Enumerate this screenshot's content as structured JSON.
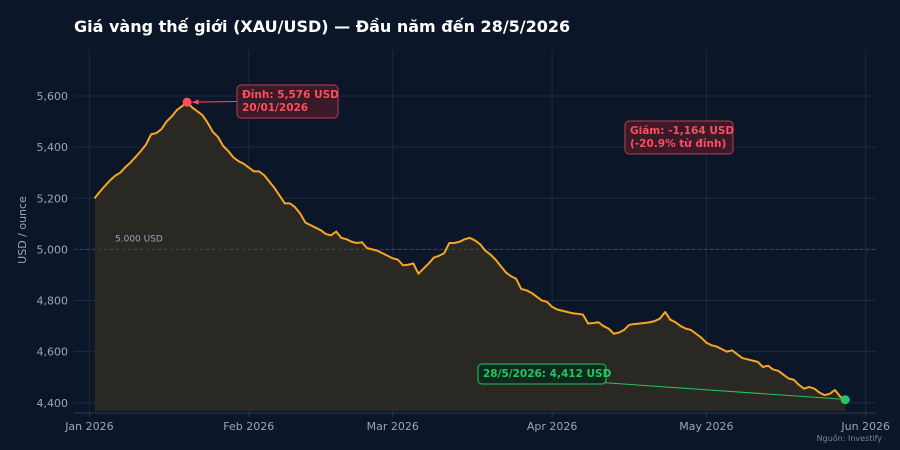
{
  "chart_data": {
    "type": "line",
    "title": "Giá vàng thế giới (XAU/USD) — Đầu năm đến 28/5/2026",
    "ylabel": "USD / ounce",
    "xlabel": "",
    "source": "Nguồn: Investify",
    "x_range": [
      "2025-12-29",
      "2026-06-03"
    ],
    "ylim": [
      4360,
      5780
    ],
    "y_ticks": [
      4400,
      4600,
      4800,
      5000,
      5200,
      5400,
      5600
    ],
    "y_tick_labels": [
      "4,400",
      "4,600",
      "4,800",
      "5,000",
      "5,200",
      "5,400",
      "5,600"
    ],
    "x_ticks": [
      {
        "date": "2026-01-01",
        "label": "Jan 2026"
      },
      {
        "date": "2026-02-01",
        "label": "Feb 2026"
      },
      {
        "date": "2026-03-01",
        "label": "Mar 2026"
      },
      {
        "date": "2026-04-01",
        "label": "Apr 2026"
      },
      {
        "date": "2026-05-01",
        "label": "May 2026"
      },
      {
        "date": "2026-06-01",
        "label": "Jun 2026"
      }
    ],
    "grid": true,
    "reference_line": {
      "y": 5000,
      "label": "5.000 USD"
    },
    "series": [
      {
        "color": "#f5a623",
        "fill": "#2a2823",
        "points": [
          [
            "2026-01-02",
            5200
          ],
          [
            "2026-01-03",
            5225
          ],
          [
            "2026-01-04",
            5248
          ],
          [
            "2026-01-05",
            5270
          ],
          [
            "2026-01-06",
            5288
          ],
          [
            "2026-01-07",
            5300
          ],
          [
            "2026-01-08",
            5322
          ],
          [
            "2026-01-09",
            5340
          ],
          [
            "2026-01-10",
            5362
          ],
          [
            "2026-01-11",
            5385
          ],
          [
            "2026-01-12",
            5410
          ],
          [
            "2026-01-13",
            5450
          ],
          [
            "2026-01-14",
            5455
          ],
          [
            "2026-01-15",
            5470
          ],
          [
            "2026-01-16",
            5500
          ],
          [
            "2026-01-17",
            5520
          ],
          [
            "2026-01-18",
            5545
          ],
          [
            "2026-01-19",
            5560
          ],
          [
            "2026-01-20",
            5576
          ],
          [
            "2026-01-21",
            5555
          ],
          [
            "2026-01-22",
            5540
          ],
          [
            "2026-01-23",
            5525
          ],
          [
            "2026-01-24",
            5495
          ],
          [
            "2026-01-25",
            5460
          ],
          [
            "2026-01-26",
            5440
          ],
          [
            "2026-01-27",
            5405
          ],
          [
            "2026-01-28",
            5385
          ],
          [
            "2026-01-29",
            5360
          ],
          [
            "2026-01-30",
            5345
          ],
          [
            "2026-01-31",
            5335
          ],
          [
            "2026-02-01",
            5320
          ],
          [
            "2026-02-02",
            5305
          ],
          [
            "2026-02-03",
            5305
          ],
          [
            "2026-02-04",
            5290
          ],
          [
            "2026-02-05",
            5265
          ],
          [
            "2026-02-06",
            5240
          ],
          [
            "2026-02-07",
            5210
          ],
          [
            "2026-02-08",
            5180
          ],
          [
            "2026-02-09",
            5180
          ],
          [
            "2026-02-10",
            5165
          ],
          [
            "2026-02-11",
            5140
          ],
          [
            "2026-02-12",
            5105
          ],
          [
            "2026-02-13",
            5095
          ],
          [
            "2026-02-14",
            5085
          ],
          [
            "2026-02-15",
            5075
          ],
          [
            "2026-02-16",
            5060
          ],
          [
            "2026-02-17",
            5055
          ],
          [
            "2026-02-18",
            5070
          ],
          [
            "2026-02-19",
            5045
          ],
          [
            "2026-02-20",
            5040
          ],
          [
            "2026-02-21",
            5030
          ],
          [
            "2026-02-22",
            5025
          ],
          [
            "2026-02-23",
            5028
          ],
          [
            "2026-02-24",
            5005
          ],
          [
            "2026-02-25",
            5000
          ],
          [
            "2026-02-26",
            4995
          ],
          [
            "2026-02-27",
            4985
          ],
          [
            "2026-02-28",
            4975
          ],
          [
            "2026-03-01",
            4965
          ],
          [
            "2026-03-02",
            4960
          ],
          [
            "2026-03-03",
            4938
          ],
          [
            "2026-03-04",
            4940
          ],
          [
            "2026-03-05",
            4945
          ],
          [
            "2026-03-06",
            4905
          ],
          [
            "2026-03-07",
            4925
          ],
          [
            "2026-03-08",
            4945
          ],
          [
            "2026-03-09",
            4968
          ],
          [
            "2026-03-10",
            4975
          ],
          [
            "2026-03-11",
            4985
          ],
          [
            "2026-03-12",
            5025
          ],
          [
            "2026-03-13",
            5025
          ],
          [
            "2026-03-14",
            5030
          ],
          [
            "2026-03-15",
            5040
          ],
          [
            "2026-03-16",
            5045
          ],
          [
            "2026-03-17",
            5035
          ],
          [
            "2026-03-18",
            5020
          ],
          [
            "2026-03-19",
            4995
          ],
          [
            "2026-03-20",
            4980
          ],
          [
            "2026-03-21",
            4960
          ],
          [
            "2026-03-22",
            4935
          ],
          [
            "2026-03-23",
            4910
          ],
          [
            "2026-03-24",
            4895
          ],
          [
            "2026-03-25",
            4885
          ],
          [
            "2026-03-26",
            4845
          ],
          [
            "2026-03-27",
            4840
          ],
          [
            "2026-03-28",
            4830
          ],
          [
            "2026-03-29",
            4815
          ],
          [
            "2026-03-30",
            4800
          ],
          [
            "2026-03-31",
            4795
          ],
          [
            "2026-04-01",
            4775
          ],
          [
            "2026-04-02",
            4765
          ],
          [
            "2026-04-03",
            4760
          ],
          [
            "2026-04-04",
            4755
          ],
          [
            "2026-04-05",
            4750
          ],
          [
            "2026-04-06",
            4748
          ],
          [
            "2026-04-07",
            4745
          ],
          [
            "2026-04-08",
            4710
          ],
          [
            "2026-04-09",
            4712
          ],
          [
            "2026-04-10",
            4715
          ],
          [
            "2026-04-11",
            4700
          ],
          [
            "2026-04-12",
            4690
          ],
          [
            "2026-04-13",
            4670
          ],
          [
            "2026-04-14",
            4675
          ],
          [
            "2026-04-15",
            4685
          ],
          [
            "2026-04-16",
            4705
          ],
          [
            "2026-04-17",
            4708
          ],
          [
            "2026-04-18",
            4710
          ],
          [
            "2026-04-19",
            4712
          ],
          [
            "2026-04-20",
            4715
          ],
          [
            "2026-04-21",
            4720
          ],
          [
            "2026-04-22",
            4730
          ],
          [
            "2026-04-23",
            4755
          ],
          [
            "2026-04-24",
            4725
          ],
          [
            "2026-04-25",
            4715
          ],
          [
            "2026-04-26",
            4700
          ],
          [
            "2026-04-27",
            4690
          ],
          [
            "2026-04-28",
            4685
          ],
          [
            "2026-04-29",
            4670
          ],
          [
            "2026-04-30",
            4655
          ],
          [
            "2026-05-01",
            4635
          ],
          [
            "2026-05-02",
            4625
          ],
          [
            "2026-05-03",
            4620
          ],
          [
            "2026-05-04",
            4610
          ],
          [
            "2026-05-05",
            4600
          ],
          [
            "2026-05-06",
            4605
          ],
          [
            "2026-05-07",
            4590
          ],
          [
            "2026-05-08",
            4575
          ],
          [
            "2026-05-09",
            4570
          ],
          [
            "2026-05-10",
            4565
          ],
          [
            "2026-05-11",
            4560
          ],
          [
            "2026-05-12",
            4540
          ],
          [
            "2026-05-13",
            4545
          ],
          [
            "2026-05-14",
            4530
          ],
          [
            "2026-05-15",
            4525
          ],
          [
            "2026-05-16",
            4510
          ],
          [
            "2026-05-17",
            4495
          ],
          [
            "2026-05-18",
            4490
          ],
          [
            "2026-05-19",
            4470
          ],
          [
            "2026-05-20",
            4455
          ],
          [
            "2026-05-21",
            4462
          ],
          [
            "2026-05-22",
            4455
          ],
          [
            "2026-05-23",
            4440
          ],
          [
            "2026-05-24",
            4430
          ],
          [
            "2026-05-25",
            4435
          ],
          [
            "2026-05-26",
            4450
          ],
          [
            "2026-05-27",
            4425
          ],
          [
            "2026-05-28",
            4412
          ]
        ]
      }
    ],
    "annotations": [
      {
        "name": "peak",
        "text": [
          "Đỉnh: 5,576 USD",
          "20/01/2026"
        ],
        "date": "2026-01-20",
        "value": 5576,
        "color": "#ff4d5e",
        "box_fill": "#3a1a28",
        "box_stroke": "#c0394f"
      },
      {
        "name": "latest",
        "text": [
          "28/5/2026: 4,412 USD"
        ],
        "date": "2026-05-28",
        "value": 4412,
        "color": "#22c55e",
        "box_fill": "#0f2a1d",
        "box_stroke": "#22c55e"
      },
      {
        "name": "drop",
        "text": [
          "Giảm: -1,164 USD",
          "(-20.9% từ đỉnh)"
        ],
        "color": "#ff4d5e",
        "box_fill": "#3a1a28",
        "box_stroke": "#c0394f"
      }
    ]
  },
  "colors": {
    "background": "#0b1628",
    "grid": "#1c2a40",
    "axis": "#2a3850"
  }
}
